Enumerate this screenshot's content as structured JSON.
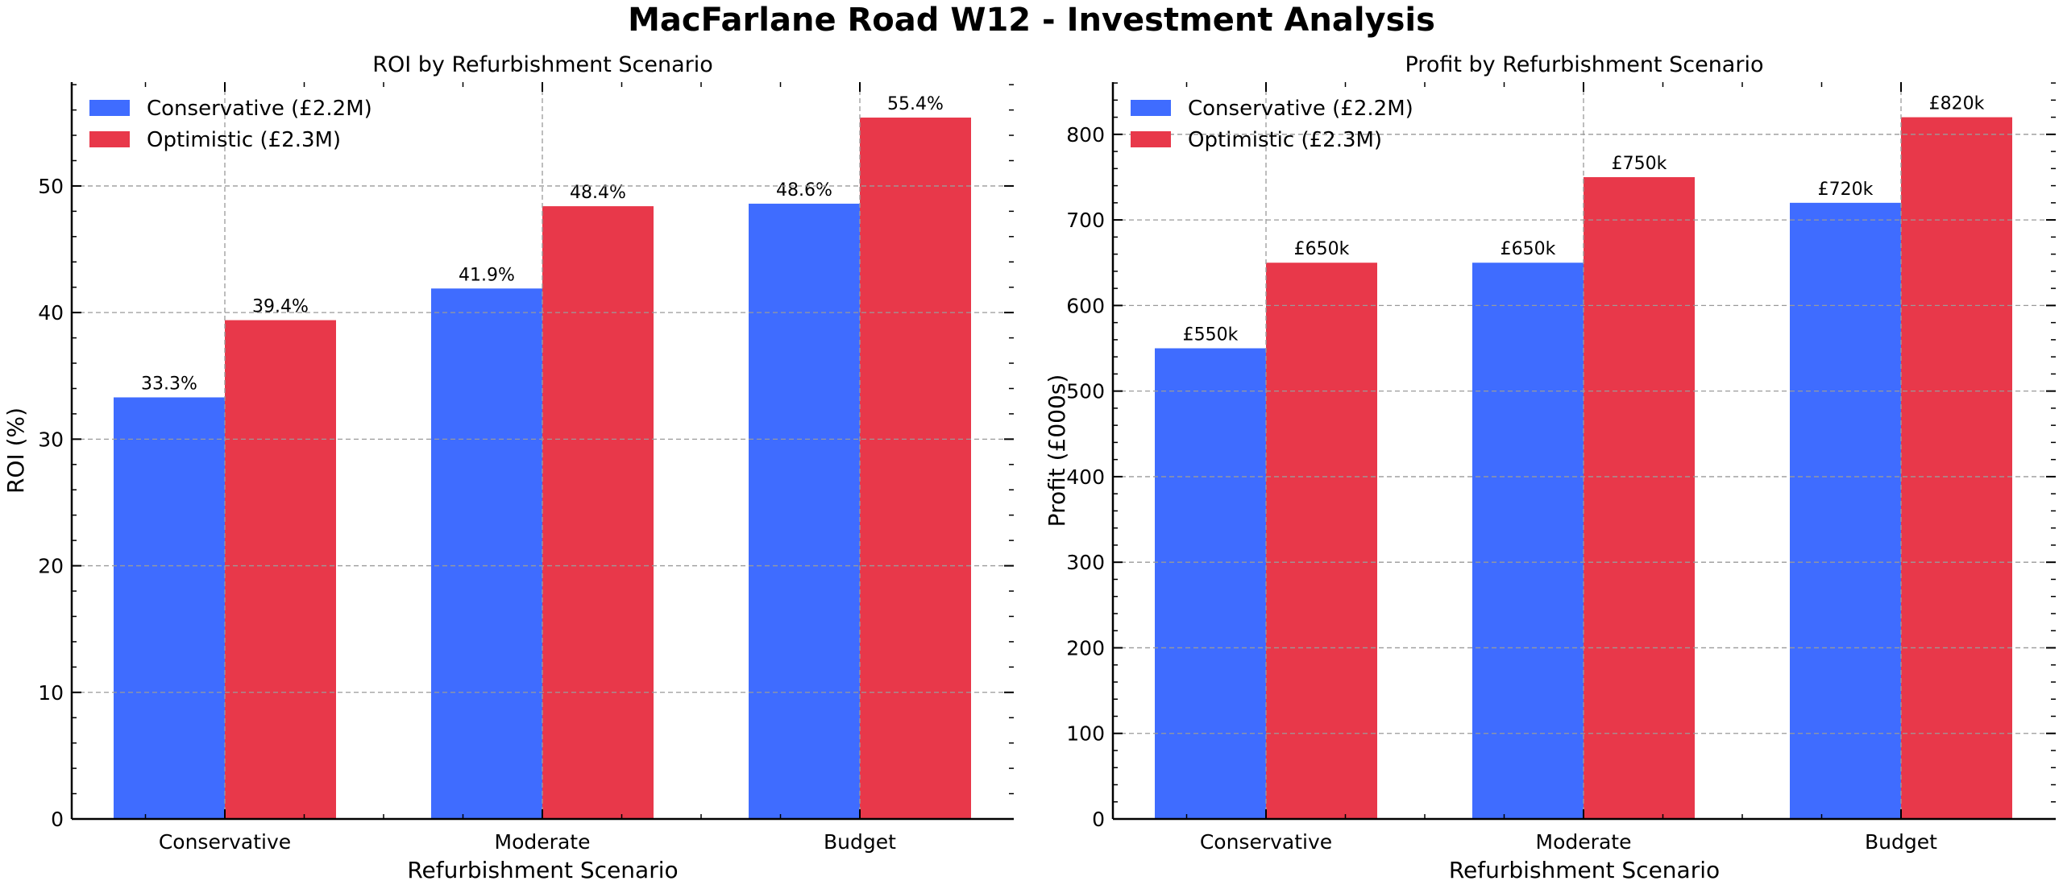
{
  "suptitle": "MacFarlane Road W12 - Investment Analysis",
  "colors": {
    "conservative": "#3F6CFF",
    "optimistic": "#E8384A"
  },
  "chart_data": [
    {
      "type": "bar",
      "title": "ROI by Refurbishment Scenario",
      "xlabel": "Refurbishment Scenario",
      "ylabel": "ROI (%)",
      "categories": [
        "Conservative",
        "Moderate",
        "Budget"
      ],
      "ylim": [
        0,
        58.2
      ],
      "yticks": [
        0,
        10,
        20,
        30,
        40,
        50
      ],
      "grid": true,
      "legend_position": "top-left",
      "series": [
        {
          "name": "Conservative (£2.2M)",
          "color_key": "conservative",
          "values": [
            33.3,
            41.9,
            48.6
          ],
          "labels": [
            "33.3%",
            "41.9%",
            "48.6%"
          ]
        },
        {
          "name": "Optimistic (£2.3M)",
          "color_key": "optimistic",
          "values": [
            39.4,
            48.4,
            55.4
          ],
          "labels": [
            "39.4%",
            "48.4%",
            "55.4%"
          ]
        }
      ]
    },
    {
      "type": "bar",
      "title": "Profit by Refurbishment Scenario",
      "xlabel": "Refurbishment Scenario",
      "ylabel": "Profit (£000s)",
      "categories": [
        "Conservative",
        "Moderate",
        "Budget"
      ],
      "ylim": [
        0,
        861
      ],
      "yticks": [
        0,
        100,
        200,
        300,
        400,
        500,
        600,
        700,
        800
      ],
      "grid": true,
      "legend_position": "top-left",
      "series": [
        {
          "name": "Conservative (£2.2M)",
          "color_key": "conservative",
          "values": [
            550,
            650,
            720
          ],
          "labels": [
            "£550k",
            "£650k",
            "£720k"
          ]
        },
        {
          "name": "Optimistic (£2.3M)",
          "color_key": "optimistic",
          "values": [
            650,
            750,
            820
          ],
          "labels": [
            "£650k",
            "£750k",
            "£820k"
          ]
        }
      ]
    }
  ]
}
